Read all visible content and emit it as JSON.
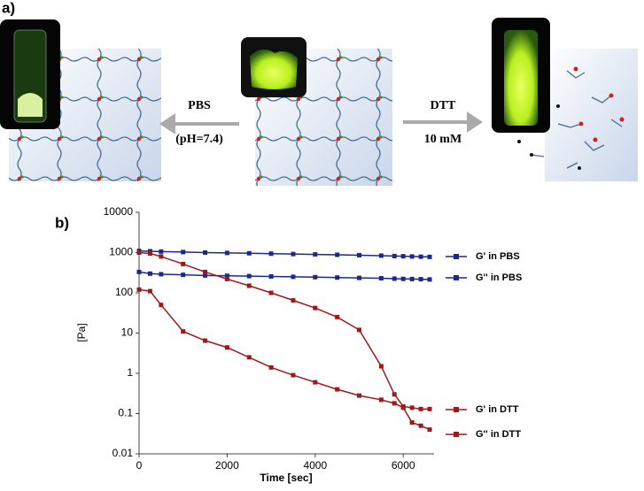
{
  "figure": {
    "panel_a_label": "a)",
    "left_arrow_top": "PBS",
    "left_arrow_bottom": "(pH=7.4)",
    "right_arrow_top": "DTT",
    "right_arrow_bottom": "10 mM",
    "panel_b_label": "b)"
  },
  "chart_data": {
    "type": "line",
    "x_label": "Time [sec]",
    "y_label": "[Pa]",
    "log_y": true,
    "x": [
      0,
      250,
      500,
      1000,
      1500,
      2000,
      2500,
      3000,
      3500,
      4000,
      4500,
      5000,
      5500,
      5800,
      6000,
      6200,
      6400,
      6600
    ],
    "series": [
      {
        "name": "G' in  PBS",
        "color": "#1a2a8c",
        "values": [
          1100,
          1080,
          1060,
          1030,
          1000,
          980,
          960,
          940,
          920,
          900,
          880,
          860,
          840,
          820,
          810,
          800,
          790,
          780
        ]
      },
      {
        "name": "G'' in PBS",
        "color": "#1a2a8c",
        "values": [
          330,
          300,
          290,
          280,
          270,
          265,
          260,
          255,
          250,
          245,
          240,
          235,
          230,
          225,
          222,
          220,
          218,
          215
        ]
      },
      {
        "name": "G' in  DTT",
        "color": "#a01818",
        "values": [
          1000,
          950,
          800,
          520,
          330,
          220,
          150,
          100,
          65,
          42,
          25,
          12,
          1.5,
          0.3,
          0.15,
          0.14,
          0.13,
          0.13
        ]
      },
      {
        "name": "G'' in DTT",
        "color": "#a01818",
        "values": [
          120,
          110,
          50,
          11,
          6.5,
          4.4,
          2.5,
          1.4,
          0.9,
          0.6,
          0.4,
          0.28,
          0.22,
          0.18,
          0.14,
          0.06,
          0.05,
          0.04
        ]
      }
    ],
    "xlim": [
      0,
      6700
    ],
    "xticks": [
      0,
      2000,
      4000,
      6000
    ],
    "ylim": [
      0.01,
      10000
    ],
    "yticks": [
      0.01,
      0.1,
      1,
      10,
      100,
      1000,
      10000
    ]
  }
}
